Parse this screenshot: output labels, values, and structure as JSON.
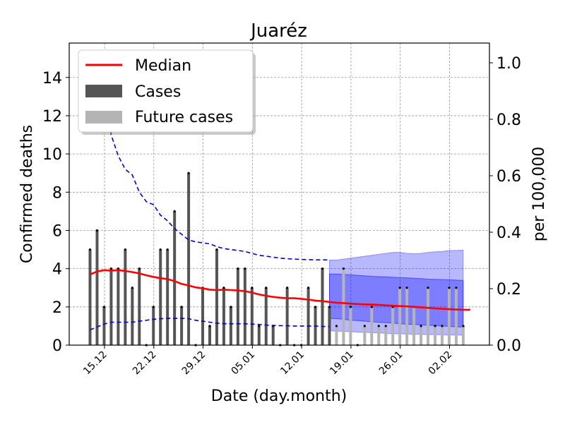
{
  "chart_data": {
    "type": "bar",
    "title": "Juaréz",
    "xlabel": "Date (day.month)",
    "ylabel": "Confirmed deaths",
    "ylabel_right": "per 100,000",
    "ylim": [
      0,
      15.8
    ],
    "ylim_right": [
      0,
      1.07
    ],
    "yticks": [
      0,
      2,
      4,
      6,
      8,
      10,
      12,
      14
    ],
    "yticks_right": [
      "0.0",
      "0.2",
      "0.4",
      "0.6",
      "0.8",
      "1.0"
    ],
    "x_tick_labels": [
      "15.12",
      "22.12",
      "29.12",
      "05.01",
      "12.01",
      "19.01",
      "26.01",
      "02.02"
    ],
    "grid": true,
    "legend_position": "top-left",
    "legend": {
      "median": "Median",
      "cases": "Cases",
      "future": "Future cases"
    },
    "colors": {
      "median": "#ff0000",
      "cases": "#555555",
      "future": "#b4b4b4",
      "ci_band": "#0000ff",
      "reference_line": "#0000cc"
    },
    "cases": [
      5,
      6,
      2,
      4,
      4,
      5,
      3,
      4,
      0,
      2,
      5,
      5,
      7,
      2,
      9,
      0,
      3,
      1,
      5,
      3,
      2,
      4,
      4,
      3,
      1,
      3,
      1,
      0,
      3,
      0,
      0,
      3,
      2,
      4,
      2
    ],
    "future_cases": [
      1,
      4,
      2,
      0,
      1,
      2,
      1,
      1,
      2,
      3,
      3,
      2,
      1,
      3,
      1,
      1,
      3,
      3,
      1
    ],
    "median": [
      3.7,
      3.85,
      3.92,
      3.9,
      3.92,
      3.88,
      3.82,
      3.75,
      3.65,
      3.57,
      3.5,
      3.45,
      3.35,
      3.2,
      3.12,
      3.02,
      2.97,
      2.9,
      2.88,
      2.9,
      2.88,
      2.86,
      2.82,
      2.75,
      2.65,
      2.58,
      2.52,
      2.48,
      2.45,
      2.45,
      2.42,
      2.38,
      2.33,
      2.3,
      2.26,
      2.22,
      2.2,
      2.17,
      2.15,
      2.13,
      2.12,
      2.1,
      2.08,
      2.06,
      2.04,
      2.03,
      2.0,
      1.98,
      1.95,
      1.92,
      1.9,
      1.88,
      1.86,
      1.85,
      1.85
    ],
    "upper_ref": [
      null,
      null,
      13.4,
      11.0,
      9.9,
      9.2,
      8.9,
      8.0,
      7.5,
      7.35,
      6.8,
      6.5,
      6.1,
      5.8,
      5.5,
      5.4,
      5.35,
      5.3,
      5.15,
      5.05,
      5.0,
      4.95,
      4.9,
      4.8,
      4.7,
      4.65,
      4.6,
      4.55,
      4.52,
      4.5,
      4.48,
      4.47,
      4.46,
      4.46,
      4.46
    ],
    "lower_ref": [
      0.8,
      0.95,
      1.1,
      1.2,
      1.2,
      1.2,
      1.2,
      1.25,
      1.3,
      1.35,
      1.38,
      1.4,
      1.4,
      1.4,
      1.38,
      1.3,
      1.25,
      1.2,
      1.15,
      1.12,
      1.12,
      1.12,
      1.12,
      1.1,
      1.08,
      1.05,
      1.03,
      1.02,
      1.01,
      1.0,
      1.0,
      1.0,
      1.0,
      0.98,
      0.97
    ],
    "ci_outer_upper": [
      4.45,
      4.45,
      4.5,
      4.55,
      4.6,
      4.65,
      4.7,
      4.75,
      4.8,
      4.85,
      4.85,
      4.8,
      4.78,
      4.8,
      4.85,
      4.88,
      4.9,
      4.95,
      4.95,
      4.97
    ],
    "ci_outer_lower": [
      0.75,
      0.73,
      0.72,
      0.7,
      0.68,
      0.67,
      0.65,
      0.64,
      0.62,
      0.6,
      0.59,
      0.58,
      0.57,
      0.56,
      0.55,
      0.55,
      0.54,
      0.53,
      0.53,
      0.52
    ],
    "ci_inner_upper": [
      3.72,
      3.72,
      3.7,
      3.68,
      3.65,
      3.63,
      3.6,
      3.58,
      3.57,
      3.55,
      3.53,
      3.52,
      3.5,
      3.48,
      3.45,
      3.44,
      3.43,
      3.42,
      3.4,
      3.38
    ],
    "ci_inner_lower": [
      1.4,
      1.38,
      1.35,
      1.3,
      1.28,
      1.25,
      1.22,
      1.2,
      1.17,
      1.15,
      1.12,
      1.1,
      1.08,
      1.06,
      1.04,
      1.02,
      1.0,
      0.98,
      0.96,
      0.94
    ]
  }
}
